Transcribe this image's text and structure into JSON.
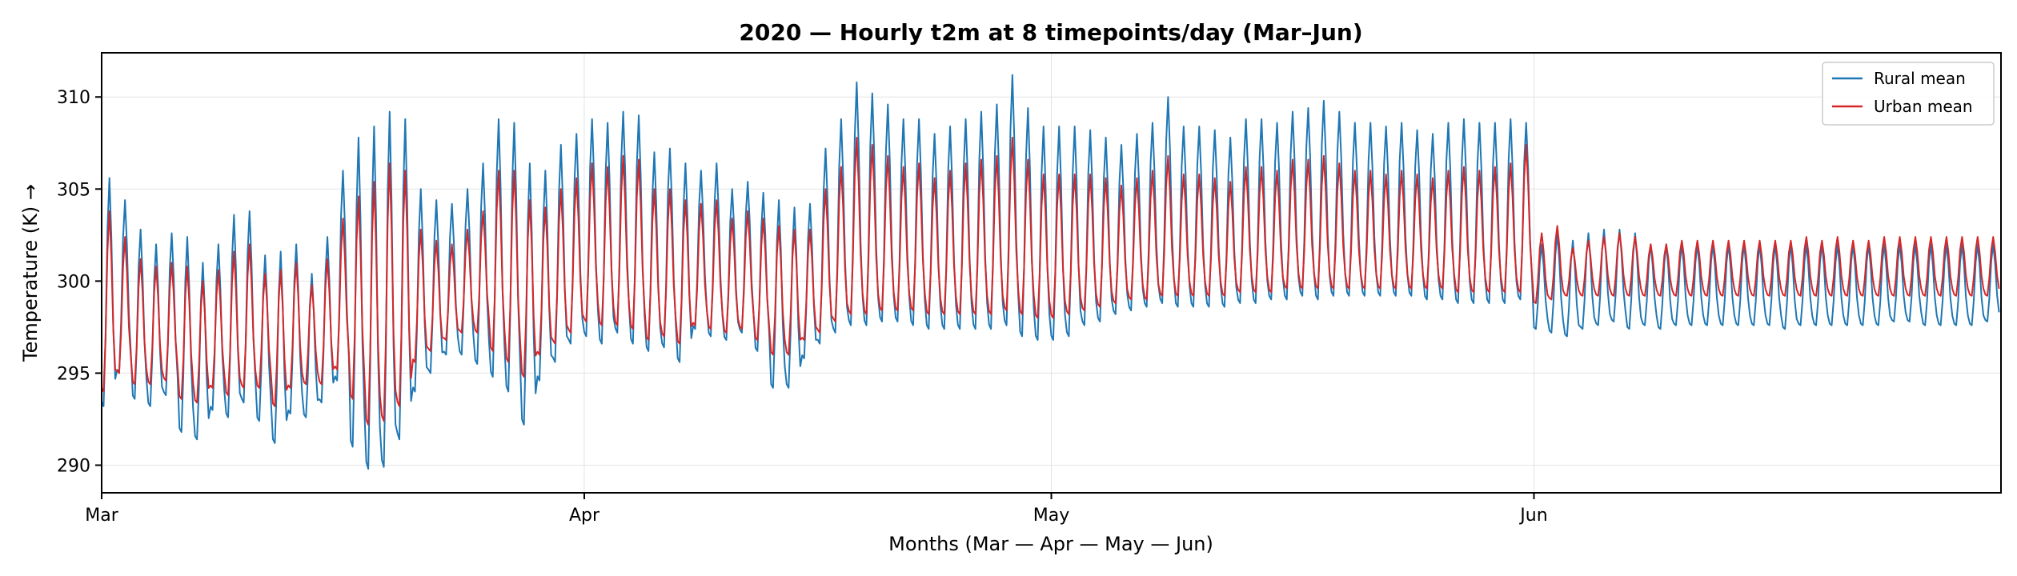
{
  "chart_data": {
    "type": "line",
    "title": "2020 — Hourly t2m at 8 timepoints/day (Mar–Jun)",
    "xlabel": "Months (Mar — Apr — May — Jun)",
    "ylabel": "Temperature (K) →",
    "x_ticks": [
      "Mar",
      "Apr",
      "May",
      "Jun"
    ],
    "x_tick_days": [
      0,
      31,
      61,
      92
    ],
    "xlim_days": [
      0,
      122
    ],
    "ylim": [
      288.5,
      312.4
    ],
    "y_ticks": [
      290,
      295,
      300,
      305,
      310
    ],
    "grid": true,
    "legend_position": "upper right",
    "samples_per_day": 8,
    "series": [
      {
        "name": "Rural mean",
        "color": "#1f77b4",
        "daily_min": [
          293.2,
          295.0,
          293.6,
          293.2,
          293.8,
          291.8,
          291.4,
          293.0,
          292.6,
          293.4,
          292.4,
          291.2,
          292.8,
          292.6,
          293.4,
          294.6,
          291.0,
          289.8,
          289.9,
          291.4,
          294.0,
          295.0,
          296.0,
          296.0,
          295.5,
          294.8,
          294.0,
          292.2,
          294.6,
          295.6,
          296.6,
          297.0,
          296.6,
          297.2,
          296.6,
          296.2,
          296.4,
          295.6,
          297.4,
          297.0,
          296.8,
          297.2,
          296.2,
          294.2,
          294.2,
          295.8,
          296.6,
          297.2,
          297.6,
          297.6,
          297.8,
          297.8,
          297.6,
          297.4,
          297.4,
          297.4,
          297.4,
          297.4,
          297.6,
          297.0,
          296.8,
          296.8,
          297.0,
          297.6,
          297.8,
          298.2,
          298.4,
          298.6,
          298.8,
          298.6,
          298.6,
          298.6,
          298.6,
          298.8,
          298.8,
          299.0,
          299.0,
          299.2,
          299.0,
          299.2,
          299.2,
          299.2,
          299.2,
          299.2,
          299.2,
          299.0,
          299.0,
          298.8,
          298.8,
          298.8,
          298.8,
          299.0,
          297.4,
          297.2,
          297.0,
          297.4,
          297.6,
          297.8,
          297.4,
          297.6,
          297.4,
          297.6,
          297.6,
          297.6,
          297.6,
          297.6,
          297.6,
          297.6,
          297.4,
          297.6,
          297.6,
          297.6,
          297.6,
          297.6,
          297.6,
          297.8,
          297.8,
          297.6,
          297.6,
          297.6,
          297.6,
          297.8
        ],
        "daily_max": [
          305.6,
          304.4,
          302.8,
          302.0,
          302.6,
          302.4,
          301.0,
          302.0,
          303.6,
          303.8,
          301.4,
          301.6,
          302.0,
          300.4,
          302.4,
          306.0,
          307.8,
          308.4,
          309.2,
          308.8,
          305.0,
          304.4,
          304.2,
          305.0,
          306.4,
          308.8,
          308.6,
          306.4,
          306.0,
          307.4,
          308.0,
          308.8,
          308.6,
          309.2,
          309.0,
          307.0,
          307.2,
          306.4,
          306.0,
          306.4,
          305.0,
          305.4,
          304.8,
          304.4,
          304.0,
          304.2,
          307.2,
          308.8,
          310.8,
          310.2,
          309.6,
          308.8,
          308.8,
          308.0,
          308.4,
          308.8,
          309.2,
          309.6,
          311.2,
          309.4,
          308.4,
          308.4,
          308.4,
          308.2,
          307.8,
          307.4,
          308.0,
          308.6,
          310.0,
          308.4,
          308.4,
          308.2,
          307.8,
          308.8,
          308.8,
          308.6,
          309.2,
          309.4,
          309.8,
          309.2,
          308.6,
          308.6,
          308.4,
          308.6,
          308.2,
          308.0,
          308.6,
          308.8,
          308.6,
          308.6,
          308.8,
          308.6,
          302.0,
          302.6,
          302.2,
          302.6,
          302.8,
          302.8,
          302.6,
          302.0,
          302.0,
          302.0,
          302.0,
          302.0,
          302.0,
          302.0,
          302.0,
          302.0,
          302.0,
          302.0,
          302.0,
          302.0,
          302.0,
          302.0,
          302.0,
          302.0,
          302.0,
          302.0,
          302.0,
          302.0,
          302.0,
          302.0
        ]
      },
      {
        "name": "Urban mean",
        "color": "#d62728",
        "daily_min": [
          294.0,
          295.0,
          294.4,
          294.4,
          294.6,
          293.6,
          293.4,
          294.2,
          293.8,
          294.2,
          294.2,
          293.2,
          294.2,
          294.4,
          294.4,
          295.2,
          293.6,
          292.2,
          292.4,
          293.2,
          295.6,
          296.2,
          296.8,
          297.2,
          297.2,
          296.2,
          295.6,
          294.8,
          296.0,
          296.6,
          297.2,
          297.8,
          297.6,
          297.6,
          297.4,
          296.8,
          297.0,
          296.6,
          297.6,
          297.4,
          297.2,
          297.4,
          296.8,
          296.0,
          296.0,
          296.8,
          297.2,
          297.8,
          298.2,
          298.2,
          298.4,
          298.4,
          298.4,
          298.2,
          298.2,
          298.2,
          298.2,
          298.2,
          298.4,
          298.2,
          298.0,
          298.0,
          298.2,
          298.4,
          298.6,
          298.8,
          299.0,
          299.0,
          299.2,
          299.2,
          299.2,
          299.2,
          299.2,
          299.4,
          299.4,
          299.4,
          299.6,
          299.6,
          299.6,
          299.6,
          299.6,
          299.6,
          299.6,
          299.6,
          299.6,
          299.6,
          299.6,
          299.4,
          299.4,
          299.4,
          299.4,
          299.4,
          298.8,
          299.0,
          299.2,
          299.2,
          299.2,
          299.2,
          299.2,
          299.2,
          299.2,
          299.2,
          299.2,
          299.2,
          299.2,
          299.2,
          299.2,
          299.2,
          299.2,
          299.2,
          299.2,
          299.2,
          299.2,
          299.2,
          299.2,
          299.2,
          299.2,
          299.2,
          299.2,
          299.2,
          299.2,
          299.2
        ],
        "daily_max": [
          303.8,
          302.4,
          301.2,
          300.8,
          301.0,
          300.8,
          300.0,
          300.6,
          301.6,
          302.0,
          300.4,
          300.6,
          301.0,
          299.8,
          301.2,
          303.4,
          304.6,
          305.4,
          306.4,
          306.0,
          302.8,
          302.2,
          302.0,
          302.8,
          303.8,
          306.0,
          306.0,
          304.4,
          304.0,
          305.0,
          305.6,
          306.4,
          306.2,
          306.8,
          306.6,
          305.0,
          305.0,
          304.4,
          304.2,
          304.4,
          303.4,
          303.8,
          303.4,
          303.0,
          302.8,
          302.8,
          305.0,
          306.2,
          307.8,
          307.4,
          306.8,
          306.2,
          306.4,
          305.6,
          306.0,
          306.4,
          306.6,
          306.8,
          307.8,
          306.6,
          305.8,
          305.8,
          305.8,
          305.8,
          305.6,
          305.2,
          305.6,
          306.0,
          306.8,
          305.8,
          305.8,
          305.6,
          305.4,
          306.2,
          306.2,
          306.0,
          306.6,
          306.6,
          306.8,
          306.4,
          306.0,
          306.0,
          305.8,
          306.0,
          305.8,
          305.6,
          306.0,
          306.2,
          306.0,
          306.2,
          306.4,
          307.4,
          302.6,
          303.0,
          301.8,
          302.2,
          302.4,
          302.6,
          302.4,
          302.0,
          302.0,
          302.2,
          302.2,
          302.2,
          302.2,
          302.2,
          302.2,
          302.2,
          302.2,
          302.4,
          302.2,
          302.4,
          302.2,
          302.2,
          302.4,
          302.4,
          302.4,
          302.4,
          302.4,
          302.4,
          302.4,
          302.4
        ]
      }
    ]
  }
}
